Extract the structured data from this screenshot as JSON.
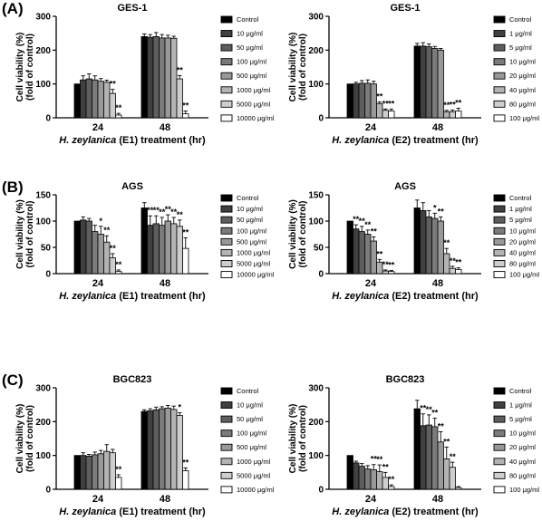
{
  "figure": {
    "units_legend_e1": [
      "Control",
      "10 μg/ml",
      "50 μg/ml",
      "100 μg/ml",
      "500 μg/ml",
      "1000 μg/ml",
      "5000 μg/ml",
      "10000 μg/ml"
    ],
    "units_legend_e2": [
      "Control",
      "1 μg/ml",
      "5 μg/ml",
      "10 μg/ml",
      "20 μg/ml",
      "40 μg/ml",
      "80 μg/ml",
      "100 μg/ml"
    ],
    "series_colors": [
      "#000000",
      "#404040",
      "#5e5e5e",
      "#7b7b7b",
      "#999999",
      "#b3b3b3",
      "#cecece",
      "#ffffff"
    ]
  },
  "chart_data": [
    {
      "type": "bar",
      "panel_label": "(A)",
      "title": "GES-1",
      "ylabel_line1": "Cell viability (%)",
      "ylabel_line2": "(fold of control)",
      "xlabel_italic": "H. zeylanica",
      "xlabel_rest": " (E1) treatment (hr)",
      "categories": [
        "24",
        "48"
      ],
      "ylim": [
        0,
        300
      ],
      "yticks": [
        "0",
        "100",
        "200",
        "300"
      ],
      "legend": "units_legend_e1",
      "values": [
        [
          100,
          112,
          115,
          112,
          108,
          105,
          72,
          8
        ],
        [
          240,
          238,
          240,
          236,
          236,
          235,
          115,
          12
        ]
      ],
      "errors": [
        [
          0,
          12,
          15,
          12,
          8,
          6,
          12,
          5
        ],
        [
          8,
          8,
          12,
          10,
          8,
          6,
          10,
          8
        ]
      ],
      "marks": [
        [
          "",
          "",
          "",
          "",
          "",
          "",
          "**",
          "**"
        ],
        [
          "",
          "",
          "",
          "",
          "",
          "",
          "**",
          "**"
        ]
      ]
    },
    {
      "type": "bar",
      "panel_label": "",
      "title": "GES-1",
      "ylabel_line1": "Cell viability (%)",
      "ylabel_line2": "(fold of control)",
      "xlabel_italic": "H. zeylanica",
      "xlabel_rest": " (E2) treatment (hr)",
      "categories": [
        "24",
        "48"
      ],
      "ylim": [
        0,
        300
      ],
      "yticks": [
        "0",
        "100",
        "200",
        "300"
      ],
      "legend": "units_legend_e2",
      "values": [
        [
          100,
          100,
          102,
          102,
          100,
          42,
          22,
          20
        ],
        [
          212,
          212,
          210,
          205,
          200,
          18,
          18,
          20
        ]
      ],
      "errors": [
        [
          0,
          5,
          8,
          10,
          8,
          5,
          4,
          6
        ],
        [
          8,
          10,
          8,
          6,
          5,
          4,
          5,
          8
        ]
      ],
      "marks": [
        [
          "",
          "",
          "",
          "",
          "",
          "**",
          "**",
          "**"
        ],
        [
          "",
          "",
          "",
          "",
          "",
          "**",
          "**",
          "**"
        ]
      ]
    },
    {
      "type": "bar",
      "panel_label": "(B)",
      "title": "AGS",
      "ylabel_line1": "Cell viability (%)",
      "ylabel_line2": "(fold of control)",
      "xlabel_italic": "H. zeylanica",
      "xlabel_rest": " (E1) treatment (hr)",
      "categories": [
        "24",
        "48"
      ],
      "ylim": [
        0,
        150
      ],
      "yticks": [
        "0",
        "50",
        "100",
        "150"
      ],
      "legend": "units_legend_e1",
      "values": [
        [
          100,
          102,
          100,
          80,
          75,
          60,
          30,
          4
        ],
        [
          125,
          92,
          95,
          92,
          100,
          95,
          90,
          48
        ]
      ],
      "errors": [
        [
          0,
          6,
          5,
          12,
          15,
          12,
          8,
          3
        ],
        [
          10,
          18,
          15,
          15,
          12,
          12,
          12,
          20
        ]
      ],
      "marks": [
        [
          "",
          "",
          "",
          "",
          "*",
          "**",
          "**",
          "**"
        ],
        [
          "",
          "**",
          "**",
          "**",
          "**",
          "**",
          "**",
          "**"
        ]
      ]
    },
    {
      "type": "bar",
      "panel_label": "",
      "title": "AGS",
      "ylabel_line1": "Cell viability (%)",
      "ylabel_line2": "(fold of control)",
      "xlabel_italic": "H. zeylanica",
      "xlabel_rest": " (E2) treatment (hr)",
      "categories": [
        "24",
        "48"
      ],
      "ylim": [
        0,
        150
      ],
      "yticks": [
        "0",
        "50",
        "100",
        "150"
      ],
      "legend": "units_legend_e2",
      "values": [
        [
          100,
          85,
          80,
          75,
          62,
          22,
          5,
          4
        ],
        [
          125,
          120,
          108,
          105,
          100,
          38,
          10,
          8
        ]
      ],
      "errors": [
        [
          0,
          8,
          10,
          8,
          8,
          5,
          2,
          2
        ],
        [
          15,
          15,
          12,
          10,
          8,
          10,
          4,
          3
        ]
      ],
      "marks": [
        [
          "",
          "**",
          "**",
          "**",
          "**",
          "**",
          "**",
          "**"
        ],
        [
          "",
          "",
          "",
          "*",
          "**",
          "**",
          "**",
          "**"
        ]
      ]
    },
    {
      "type": "bar",
      "panel_label": "(C)",
      "title": "BGC823",
      "ylabel_line1": "Cell viability (%)",
      "ylabel_line2": "(fold of control)",
      "xlabel_italic": "H. zeylanica",
      "xlabel_rest": " (E1) treatment (hr)",
      "categories": [
        "24",
        "48"
      ],
      "ylim": [
        0,
        300
      ],
      "yticks": [
        "0",
        "100",
        "200",
        "300"
      ],
      "legend": "units_legend_e1",
      "values": [
        [
          100,
          100,
          98,
          102,
          105,
          112,
          108,
          35
        ],
        [
          230,
          232,
          235,
          238,
          240,
          236,
          218,
          55
        ]
      ],
      "errors": [
        [
          0,
          8,
          5,
          8,
          10,
          20,
          10,
          8
        ],
        [
          5,
          6,
          8,
          6,
          8,
          10,
          8,
          8
        ]
      ],
      "marks": [
        [
          "",
          "",
          "",
          "",
          "",
          "",
          "",
          "**"
        ],
        [
          "",
          "",
          "",
          "",
          "",
          "",
          "*",
          "**"
        ]
      ]
    },
    {
      "type": "bar",
      "panel_label": "",
      "title": "BGC823",
      "ylabel_line1": "Cell viability (%)",
      "ylabel_line2": "(fold of control)",
      "xlabel_italic": "H. zeylanica",
      "xlabel_rest": " (E2) treatment (hr)",
      "categories": [
        "24",
        "48"
      ],
      "ylim": [
        0,
        300
      ],
      "yticks": [
        "0",
        "100",
        "200",
        "300"
      ],
      "legend": "units_legend_e2",
      "values": [
        [
          100,
          78,
          68,
          60,
          58,
          52,
          35,
          8
        ],
        [
          238,
          188,
          190,
          185,
          140,
          90,
          65,
          5
        ]
      ],
      "errors": [
        [
          0,
          5,
          8,
          10,
          15,
          20,
          15,
          5
        ],
        [
          25,
          35,
          30,
          25,
          30,
          35,
          15,
          3
        ]
      ],
      "marks": [
        [
          "",
          "",
          "",
          "",
          "**",
          "**",
          "**",
          "**"
        ],
        [
          "",
          "**",
          "**",
          "**",
          "**",
          "**",
          "**",
          ""
        ]
      ]
    }
  ]
}
